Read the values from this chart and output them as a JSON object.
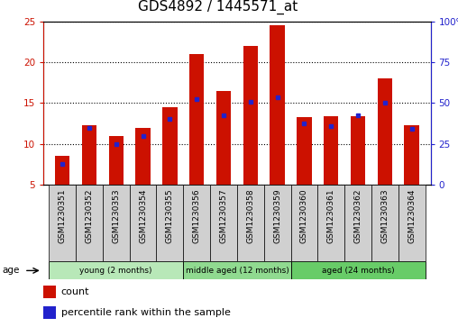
{
  "title": "GDS4892 / 1445571_at",
  "samples": [
    "GSM1230351",
    "GSM1230352",
    "GSM1230353",
    "GSM1230354",
    "GSM1230355",
    "GSM1230356",
    "GSM1230357",
    "GSM1230358",
    "GSM1230359",
    "GSM1230360",
    "GSM1230361",
    "GSM1230362",
    "GSM1230363",
    "GSM1230364"
  ],
  "count_values": [
    8.5,
    12.3,
    11.0,
    12.0,
    14.5,
    21.0,
    16.5,
    22.0,
    24.5,
    13.3,
    13.4,
    13.4,
    18.0,
    12.3
  ],
  "percentile_values": [
    7.5,
    12.0,
    10.0,
    11.0,
    13.0,
    15.5,
    13.5,
    15.2,
    15.7,
    12.5,
    12.2,
    13.5,
    15.0,
    11.8
  ],
  "ylim_left": [
    5,
    25
  ],
  "ylim_right": [
    0,
    100
  ],
  "yticks_left": [
    5,
    10,
    15,
    20,
    25
  ],
  "yticks_right": [
    0,
    25,
    50,
    75,
    100
  ],
  "bar_color": "#cc1100",
  "marker_color": "#2222cc",
  "group_labels": [
    "young (2 months)",
    "middle aged (12 months)",
    "aged (24 months)"
  ],
  "group_starts": [
    0,
    5,
    9
  ],
  "group_ends": [
    4,
    8,
    13
  ],
  "group_colors": [
    "#b8e8b8",
    "#90da90",
    "#68cc68"
  ],
  "age_label": "age",
  "legend_count": "count",
  "legend_pct": "percentile rank within the sample",
  "title_fontsize": 11,
  "tick_fontsize": 7.5,
  "bar_width": 0.55
}
